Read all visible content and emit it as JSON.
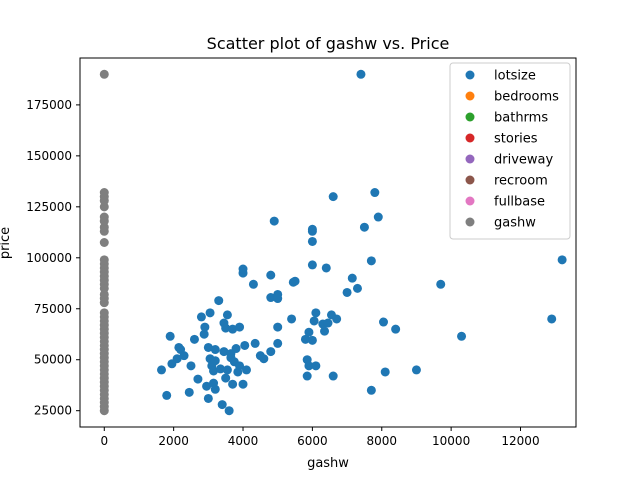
{
  "chart_data": {
    "type": "scatter",
    "title": "Scatter plot of gashw vs. Price",
    "xlabel": "gashw",
    "ylabel": "price",
    "xlim": [
      -700,
      13600
    ],
    "ylim": [
      17000,
      198000
    ],
    "x_ticks": [
      0,
      2000,
      4000,
      6000,
      8000,
      10000,
      12000
    ],
    "y_ticks": [
      25000,
      50000,
      75000,
      100000,
      125000,
      150000,
      175000
    ],
    "x_tick_labels": [
      "0",
      "2000",
      "4000",
      "6000",
      "8000",
      "10000",
      "12000"
    ],
    "y_tick_labels": [
      "25000",
      "50000",
      "75000",
      "100000",
      "125000",
      "150000",
      "175000"
    ],
    "grid": false,
    "legend_position": "top-right",
    "series": [
      {
        "name": "lotsize",
        "color": "#1f77b4",
        "points": [
          [
            1650,
            45000
          ],
          [
            1800,
            32500
          ],
          [
            1900,
            61500
          ],
          [
            1950,
            48000
          ],
          [
            2100,
            50500
          ],
          [
            2150,
            56000
          ],
          [
            2200,
            55000
          ],
          [
            2300,
            52000
          ],
          [
            2450,
            34000
          ],
          [
            2500,
            47000
          ],
          [
            2600,
            60000
          ],
          [
            2700,
            40500
          ],
          [
            2800,
            71000
          ],
          [
            2880,
            62500
          ],
          [
            2900,
            66000
          ],
          [
            2950,
            37000
          ],
          [
            3000,
            56000
          ],
          [
            3000,
            31000
          ],
          [
            3050,
            50500
          ],
          [
            3050,
            73000
          ],
          [
            3100,
            47000
          ],
          [
            3150,
            38500
          ],
          [
            3150,
            44500
          ],
          [
            3200,
            35500
          ],
          [
            3200,
            49500
          ],
          [
            3200,
            55000
          ],
          [
            3300,
            79000
          ],
          [
            3350,
            45500
          ],
          [
            3400,
            28000
          ],
          [
            3450,
            54000
          ],
          [
            3450,
            68000
          ],
          [
            3500,
            65500
          ],
          [
            3500,
            41000
          ],
          [
            3550,
            72000
          ],
          [
            3550,
            45000
          ],
          [
            3600,
            25000
          ],
          [
            3650,
            51000
          ],
          [
            3650,
            53000
          ],
          [
            3700,
            38000
          ],
          [
            3700,
            65000
          ],
          [
            3750,
            49000
          ],
          [
            3800,
            55500
          ],
          [
            3850,
            44000
          ],
          [
            3900,
            66000
          ],
          [
            3900,
            47000
          ],
          [
            4000,
            92500
          ],
          [
            4000,
            38000
          ],
          [
            4050,
            57000
          ],
          [
            4100,
            45000
          ],
          [
            4000,
            94500
          ],
          [
            4300,
            87000
          ],
          [
            4350,
            58000
          ],
          [
            4500,
            52000
          ],
          [
            4600,
            50500
          ],
          [
            4800,
            80500
          ],
          [
            4800,
            91500
          ],
          [
            4800,
            54000
          ],
          [
            4900,
            118000
          ],
          [
            5000,
            82000
          ],
          [
            5000,
            80000
          ],
          [
            5000,
            66000
          ],
          [
            5000,
            58000
          ],
          [
            5400,
            70000
          ],
          [
            5450,
            88000
          ],
          [
            5500,
            88500
          ],
          [
            5800,
            60000
          ],
          [
            5850,
            42000
          ],
          [
            5850,
            50000
          ],
          [
            5900,
            47000
          ],
          [
            5900,
            63500
          ],
          [
            6000,
            59500
          ],
          [
            6000,
            108000
          ],
          [
            6000,
            113000
          ],
          [
            6000,
            114000
          ],
          [
            6000,
            96500
          ],
          [
            6050,
            69000
          ],
          [
            6100,
            73000
          ],
          [
            6100,
            47000
          ],
          [
            6300,
            67500
          ],
          [
            6350,
            64000
          ],
          [
            6400,
            95000
          ],
          [
            6450,
            68000
          ],
          [
            6550,
            72000
          ],
          [
            6600,
            130000
          ],
          [
            6600,
            42000
          ],
          [
            6700,
            70000
          ],
          [
            7000,
            83000
          ],
          [
            7150,
            90000
          ],
          [
            7300,
            85000
          ],
          [
            7400,
            190000
          ],
          [
            7500,
            115000
          ],
          [
            7700,
            98500
          ],
          [
            7700,
            35000
          ],
          [
            7800,
            132000
          ],
          [
            7900,
            120000
          ],
          [
            8050,
            68500
          ],
          [
            8100,
            44000
          ],
          [
            8400,
            65000
          ],
          [
            9000,
            45000
          ],
          [
            9700,
            87000
          ],
          [
            10300,
            61500
          ],
          [
            12900,
            70000
          ],
          [
            13200,
            99000
          ]
        ]
      },
      {
        "name": "bedrooms",
        "color": "#ff7f0e",
        "points": []
      },
      {
        "name": "bathrms",
        "color": "#2ca02c",
        "points": []
      },
      {
        "name": "stories",
        "color": "#d62728",
        "points": []
      },
      {
        "name": "driveway",
        "color": "#9467bd",
        "points": []
      },
      {
        "name": "recroom",
        "color": "#8c564b",
        "points": []
      },
      {
        "name": "fullbase",
        "color": "#e377c2",
        "points": []
      },
      {
        "name": "gashw",
        "color": "#7f7f7f",
        "points": [
          [
            0,
            25000
          ],
          [
            0,
            27000
          ],
          [
            0,
            29000
          ],
          [
            0,
            31000
          ],
          [
            0,
            33000
          ],
          [
            0,
            35000
          ],
          [
            0,
            37000
          ],
          [
            0,
            39000
          ],
          [
            0,
            41000
          ],
          [
            0,
            43000
          ],
          [
            0,
            45000
          ],
          [
            0,
            47000
          ],
          [
            0,
            49000
          ],
          [
            0,
            51000
          ],
          [
            0,
            53000
          ],
          [
            0,
            55000
          ],
          [
            0,
            57000
          ],
          [
            0,
            59000
          ],
          [
            0,
            61000
          ],
          [
            0,
            63000
          ],
          [
            0,
            65000
          ],
          [
            0,
            67000
          ],
          [
            0,
            69000
          ],
          [
            0,
            71000
          ],
          [
            0,
            73000
          ],
          [
            0,
            78000
          ],
          [
            0,
            80000
          ],
          [
            0,
            82000
          ],
          [
            0,
            85000
          ],
          [
            0,
            87000
          ],
          [
            0,
            89000
          ],
          [
            0,
            91000
          ],
          [
            0,
            93000
          ],
          [
            0,
            95000
          ],
          [
            0,
            97000
          ],
          [
            0,
            99000
          ],
          [
            0,
            107500
          ],
          [
            0,
            113000
          ],
          [
            0,
            115000
          ],
          [
            0,
            118000
          ],
          [
            0,
            120000
          ],
          [
            0,
            125000
          ],
          [
            0,
            128000
          ],
          [
            0,
            130000
          ],
          [
            0,
            132000
          ],
          [
            0,
            190000
          ]
        ]
      }
    ]
  }
}
